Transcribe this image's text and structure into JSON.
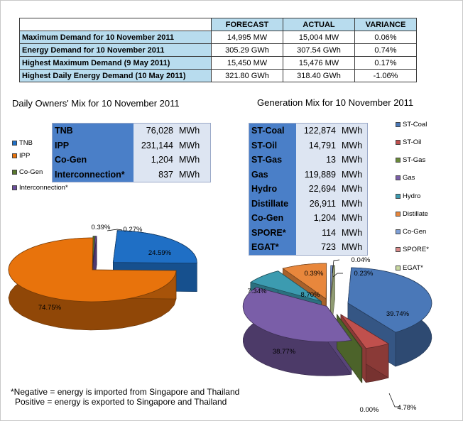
{
  "summary": {
    "headers": [
      "FORECAST",
      "ACTUAL",
      "VARIANCE"
    ],
    "rows": [
      {
        "label": "Maximum Demand for 10 November 2011",
        "forecast": "14,995  MW",
        "actual": "15,004  MW",
        "variance": "0.06%"
      },
      {
        "label": "Energy Demand for 10 November 2011",
        "forecast": "305.29  GWh",
        "actual": "307.54  GWh",
        "variance": "0.74%"
      },
      {
        "label": "Highest Maximum Demand (9 May 2011)",
        "forecast": "15,450  MW",
        "actual": "15,476  MW",
        "variance": "0.17%"
      },
      {
        "label": "Highest Daily Energy Demand (10 May 2011)",
        "forecast": "321.80  GWh",
        "actual": "318.40  GWh",
        "variance": "-1.06%"
      }
    ]
  },
  "owners": {
    "title": "Daily Owners' Mix for 10 November 2011",
    "rows": [
      {
        "name": "TNB",
        "value": "76,028",
        "unit": "MWh"
      },
      {
        "name": "IPP",
        "value": "231,144",
        "unit": "MWh"
      },
      {
        "name": "Co-Gen",
        "value": "1,204",
        "unit": "MWh"
      },
      {
        "name": "Interconnection*",
        "value": "837",
        "unit": "MWh"
      }
    ],
    "legend": [
      {
        "name": "TNB",
        "color": "#1f6fc5"
      },
      {
        "name": "IPP",
        "color": "#e8730c"
      },
      {
        "name": "Co-Gen",
        "color": "#5a7a2e"
      },
      {
        "name": "Interconnection*",
        "color": "#6a4e9c"
      }
    ]
  },
  "generation": {
    "title": "Generation Mix for 10 November 2011",
    "rows": [
      {
        "name": "ST-Coal",
        "value": "122,874",
        "unit": "MWh"
      },
      {
        "name": "ST-Oil",
        "value": "14,791",
        "unit": "MWh"
      },
      {
        "name": "ST-Gas",
        "value": "13",
        "unit": "MWh"
      },
      {
        "name": "Gas",
        "value": "119,889",
        "unit": "MWh"
      },
      {
        "name": "Hydro",
        "value": "22,694",
        "unit": "MWh"
      },
      {
        "name": "Distillate",
        "value": "26,911",
        "unit": "MWh"
      },
      {
        "name": "Co-Gen",
        "value": "1,204",
        "unit": "MWh"
      },
      {
        "name": "SPORE*",
        "value": "114",
        "unit": "MWh"
      },
      {
        "name": "EGAT*",
        "value": "723",
        "unit": "MWh"
      }
    ],
    "legend": [
      {
        "name": "ST-Coal",
        "color": "#4a78b8"
      },
      {
        "name": "ST-Oil",
        "color": "#c0504d"
      },
      {
        "name": "ST-Gas",
        "color": "#6a8a3a"
      },
      {
        "name": "Gas",
        "color": "#7a5ea8"
      },
      {
        "name": "Hydro",
        "color": "#3c9bb0"
      },
      {
        "name": "Distillate",
        "color": "#e8873c"
      },
      {
        "name": "Co-Gen",
        "color": "#7fa0d8"
      },
      {
        "name": "SPORE*",
        "color": "#d98a8a"
      },
      {
        "name": "EGAT*",
        "color": "#c8d8a0"
      }
    ]
  },
  "chart_data": [
    {
      "type": "pie",
      "title": "Daily Owners' Mix for 10 November 2011",
      "categories": [
        "TNB",
        "IPP",
        "Co-Gen",
        "Interconnection*"
      ],
      "values": [
        24.59,
        74.75,
        0.39,
        0.27
      ],
      "labels": [
        "24.59%",
        "74.75%",
        "0.39%",
        "0.27%"
      ],
      "colors": [
        "#1f6fc5",
        "#e8730c",
        "#5a7a2e",
        "#6a4e9c"
      ]
    },
    {
      "type": "pie",
      "title": "Generation Mix for 10 November 2011",
      "categories": [
        "ST-Coal",
        "ST-Oil",
        "ST-Gas",
        "Gas",
        "Hydro",
        "Distillate",
        "Co-Gen",
        "SPORE*",
        "EGAT*"
      ],
      "values": [
        39.74,
        4.78,
        0.0,
        38.77,
        7.34,
        8.7,
        0.39,
        0.04,
        0.23
      ],
      "labels": [
        "39.74%",
        "4.78%",
        "0.00%",
        "38.77%",
        "7.34%",
        "8.70%",
        "0.39%",
        "0.04%",
        "0.23%"
      ],
      "colors": [
        "#4a78b8",
        "#c0504d",
        "#6a8a3a",
        "#7a5ea8",
        "#3c9bb0",
        "#e8873c",
        "#7fa0d8",
        "#d98a8a",
        "#c8d8a0"
      ]
    }
  ],
  "footnote": {
    "line1": "*Negative = energy is imported from Singapore and Thailand",
    "line2": "Positive = energy is exported to Singapore and Thailand"
  }
}
